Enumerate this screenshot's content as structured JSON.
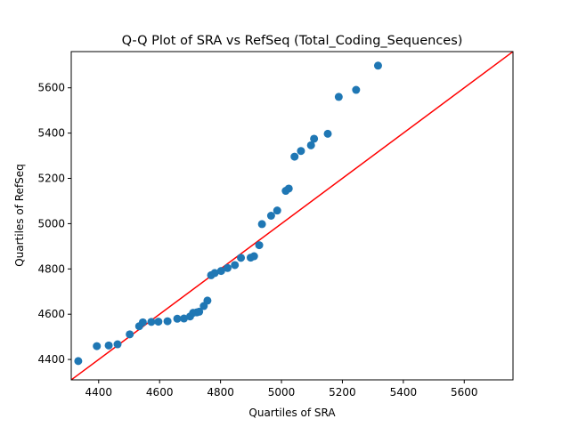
{
  "chart_data": {
    "type": "scatter",
    "title": "Q-Q Plot of SRA vs RefSeq (Total_Coding_Sequences)",
    "xlabel": "Quartiles of SRA",
    "ylabel": "Quartiles of RefSeq",
    "xlim": [
      4310,
      5760
    ],
    "ylim": [
      4310,
      5760
    ],
    "xticks": [
      4400,
      4600,
      4800,
      5000,
      5200,
      5400,
      5600
    ],
    "yticks": [
      4400,
      4600,
      4800,
      5000,
      5200,
      5400,
      5600
    ],
    "grid": false,
    "marker_color": "#1f77b4",
    "reference_line": {
      "color": "#ff0000",
      "from": [
        4310,
        4310
      ],
      "to": [
        5760,
        5760
      ]
    },
    "points": [
      [
        4333,
        4393
      ],
      [
        4394,
        4459
      ],
      [
        4433,
        4462
      ],
      [
        4462,
        4467
      ],
      [
        4502,
        4511
      ],
      [
        4533,
        4547
      ],
      [
        4545,
        4564
      ],
      [
        4573,
        4566
      ],
      [
        4596,
        4567
      ],
      [
        4626,
        4569
      ],
      [
        4658,
        4580
      ],
      [
        4680,
        4581
      ],
      [
        4700,
        4590
      ],
      [
        4710,
        4606
      ],
      [
        4722,
        4608
      ],
      [
        4730,
        4611
      ],
      [
        4745,
        4636
      ],
      [
        4757,
        4660
      ],
      [
        4769,
        4772
      ],
      [
        4781,
        4782
      ],
      [
        4802,
        4791
      ],
      [
        4823,
        4804
      ],
      [
        4847,
        4817
      ],
      [
        4867,
        4849
      ],
      [
        4899,
        4850
      ],
      [
        4910,
        4856
      ],
      [
        4927,
        4905
      ],
      [
        4936,
        4998
      ],
      [
        4966,
        5035
      ],
      [
        4986,
        5058
      ],
      [
        5014,
        5145
      ],
      [
        5024,
        5155
      ],
      [
        5043,
        5296
      ],
      [
        5064,
        5321
      ],
      [
        5097,
        5346
      ],
      [
        5107,
        5375
      ],
      [
        5152,
        5397
      ],
      [
        5188,
        5560
      ],
      [
        5245,
        5591
      ],
      [
        5317,
        5698
      ]
    ]
  }
}
